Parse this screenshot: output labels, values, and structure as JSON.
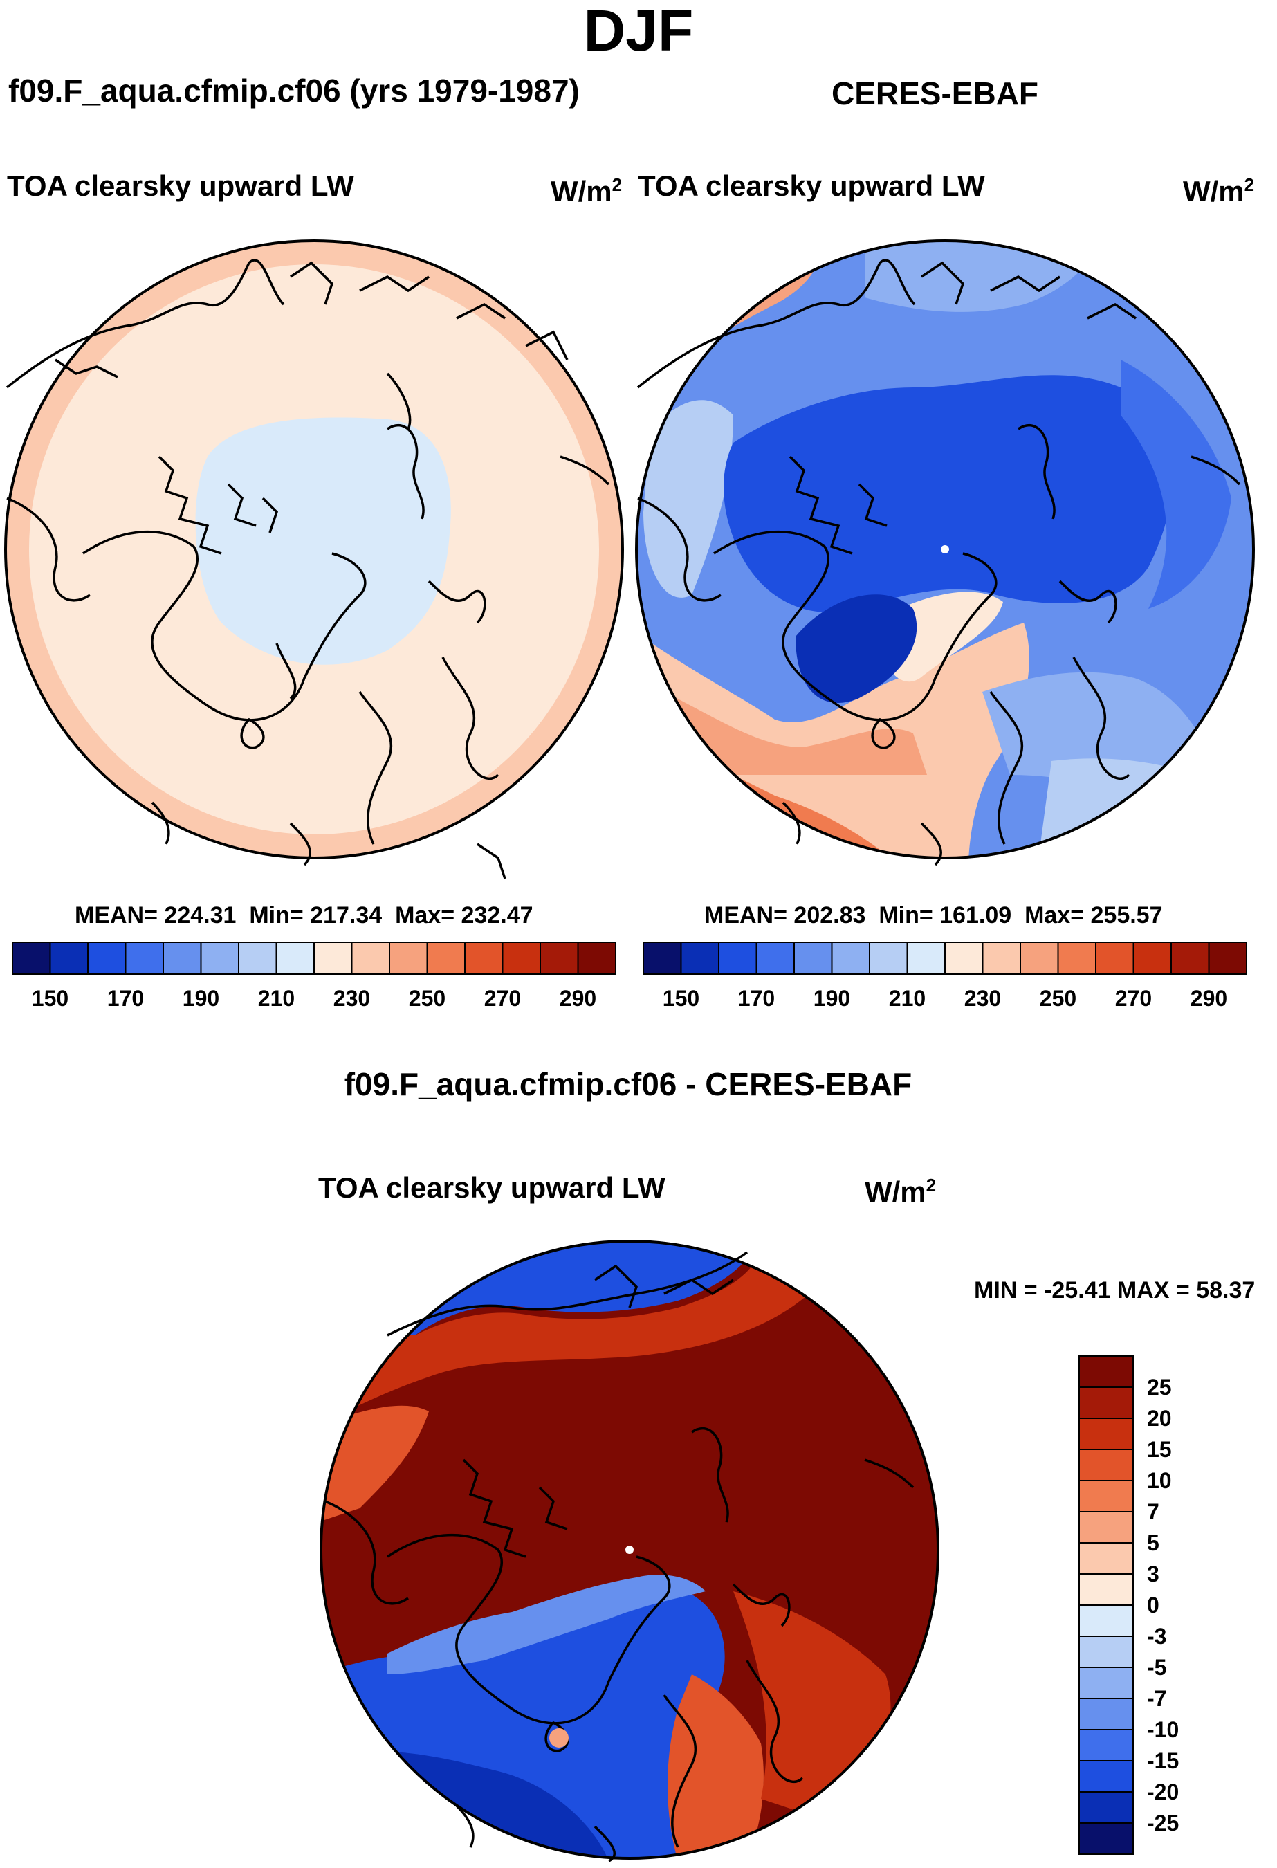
{
  "title": "DJF",
  "panels": {
    "left": {
      "case": "f09.F_aqua.cfmip.cf06 (yrs 1979-1987)",
      "variable": "TOA clearsky upward LW",
      "units_base": "W/m",
      "units_sup": "2",
      "mean_label": "MEAN= 224.31",
      "min_label": "Min= 217.34",
      "max_label": "Max= 232.47"
    },
    "right": {
      "case": "CERES-EBAF",
      "variable": "TOA clearsky upward LW",
      "units_base": "W/m",
      "units_sup": "2",
      "mean_label": "MEAN= 202.83",
      "min_label": "Min= 161.09",
      "max_label": "Max= 255.57"
    },
    "diff": {
      "title": "f09.F_aqua.cfmip.cf06 - CERES-EBAF",
      "variable": "TOA clearsky upward LW",
      "units_base": "W/m",
      "units_sup": "2",
      "minmax_label": "MIN = -25.41 MAX =  58.37"
    }
  },
  "colorbars": {
    "abs_colors": [
      "#08106b",
      "#0a2fb5",
      "#1e4fe0",
      "#3f6fec",
      "#6690ee",
      "#8eb0f2",
      "#b6cef4",
      "#d9eafa",
      "#fde9d9",
      "#fbc9ae",
      "#f6a27e",
      "#f07b4f",
      "#e2542a",
      "#c8300f",
      "#a41a08",
      "#7d0a03"
    ],
    "abs_ticks": [
      "150",
      "170",
      "190",
      "210",
      "230",
      "250",
      "270",
      "290"
    ],
    "diff_colors": [
      "#08106b",
      "#0a2fb5",
      "#1e4fe0",
      "#3f6fec",
      "#6690ee",
      "#8eb0f2",
      "#b6cef4",
      "#d9eafa",
      "#fde9d9",
      "#fbc9ae",
      "#f6a27e",
      "#f07b4f",
      "#e2542a",
      "#c8300f",
      "#a41a08",
      "#7d0a03"
    ],
    "diff_ticks": [
      "25",
      "20",
      "15",
      "10",
      "7",
      "5",
      "3",
      "0",
      "-3",
      "-5",
      "-7",
      "-10",
      "-15",
      "-20",
      "-25"
    ]
  },
  "map_colors": {
    "left_base": "#fde9d9",
    "left_ring": "#fbc9ae",
    "left_cap": "#d9eafa",
    "right_base": "#6690ee",
    "right_deep": "#1e4fe0",
    "right_deepest": "#0a2fb5",
    "right_mid": "#3f6fec",
    "right_light": "#8eb0f2",
    "right_pale": "#b6cef4",
    "right_warm": "#fbc9ae",
    "right_warmer": "#f6a27e",
    "right_hot": "#f07b4f",
    "right_cream": "#fde9d9",
    "diff_base": "#7d0a03",
    "diff_red": "#c8300f",
    "diff_orange": "#e2542a",
    "diff_blue": "#1e4fe0",
    "diff_darkblue": "#0a2fb5",
    "diff_lightblue": "#6690ee",
    "diff_pale": "#d9eafa",
    "coast": "#000000"
  }
}
